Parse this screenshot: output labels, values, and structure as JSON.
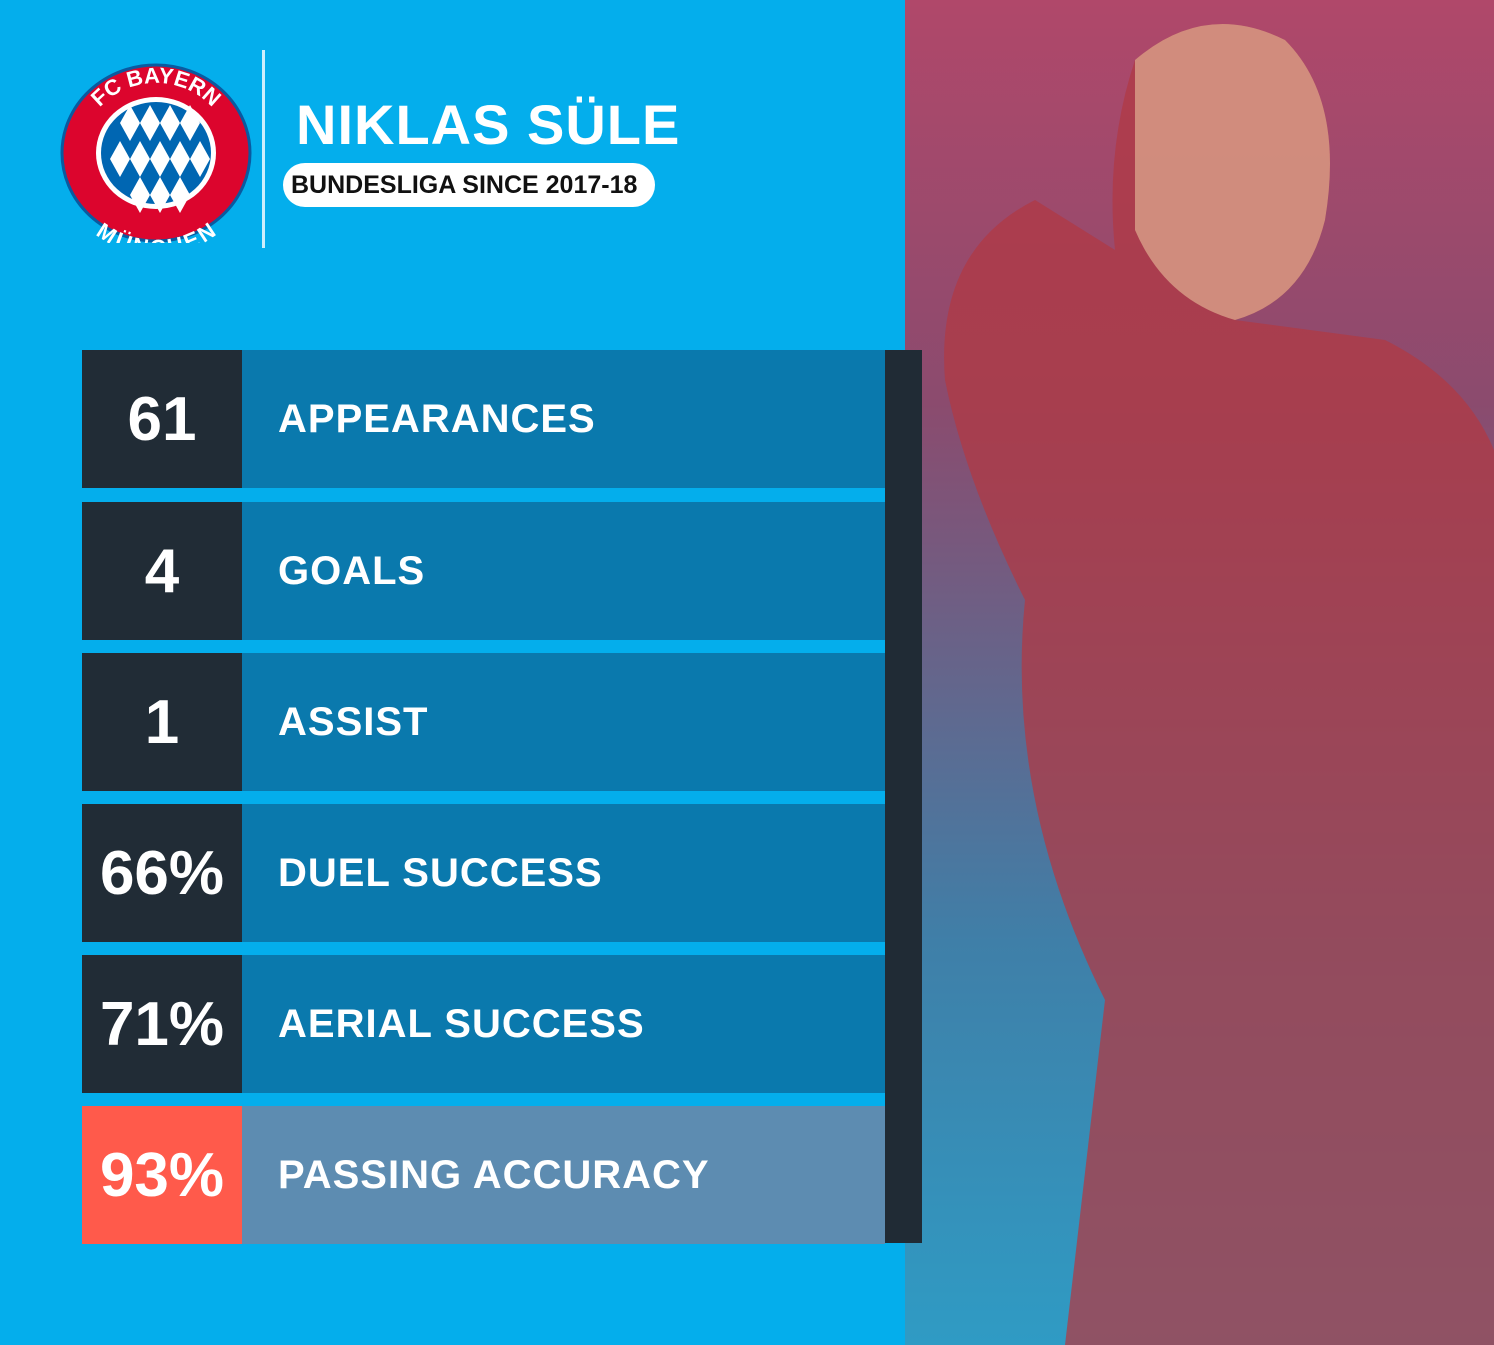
{
  "header": {
    "club_logo": {
      "top_text": "FC BAYERN",
      "bottom_text": "MÜNCHEN",
      "colors": {
        "red": "#dc052d",
        "blue": "#0066b2"
      }
    },
    "player_name": "NIKLAS SÜLE",
    "subtitle": "BUNDESLIGA SINCE 2017-18"
  },
  "stats": [
    {
      "value": "61",
      "label": "APPEARANCES"
    },
    {
      "value": "4",
      "label": "GOALS"
    },
    {
      "value": "1",
      "label": "ASSIST"
    },
    {
      "value": "66%",
      "label": "DUEL SUCCESS"
    },
    {
      "value": "71%",
      "label": "AERIAL SUCCESS"
    },
    {
      "value": "93%",
      "label": "PASSING ACCURACY",
      "highlight": true
    }
  ],
  "colors": {
    "background": "#04aeec",
    "number_box": "#212c36",
    "label_bar": "#0a79ad",
    "highlight_number": "#ff5a4b",
    "highlight_bar": "#5d8cb1"
  }
}
